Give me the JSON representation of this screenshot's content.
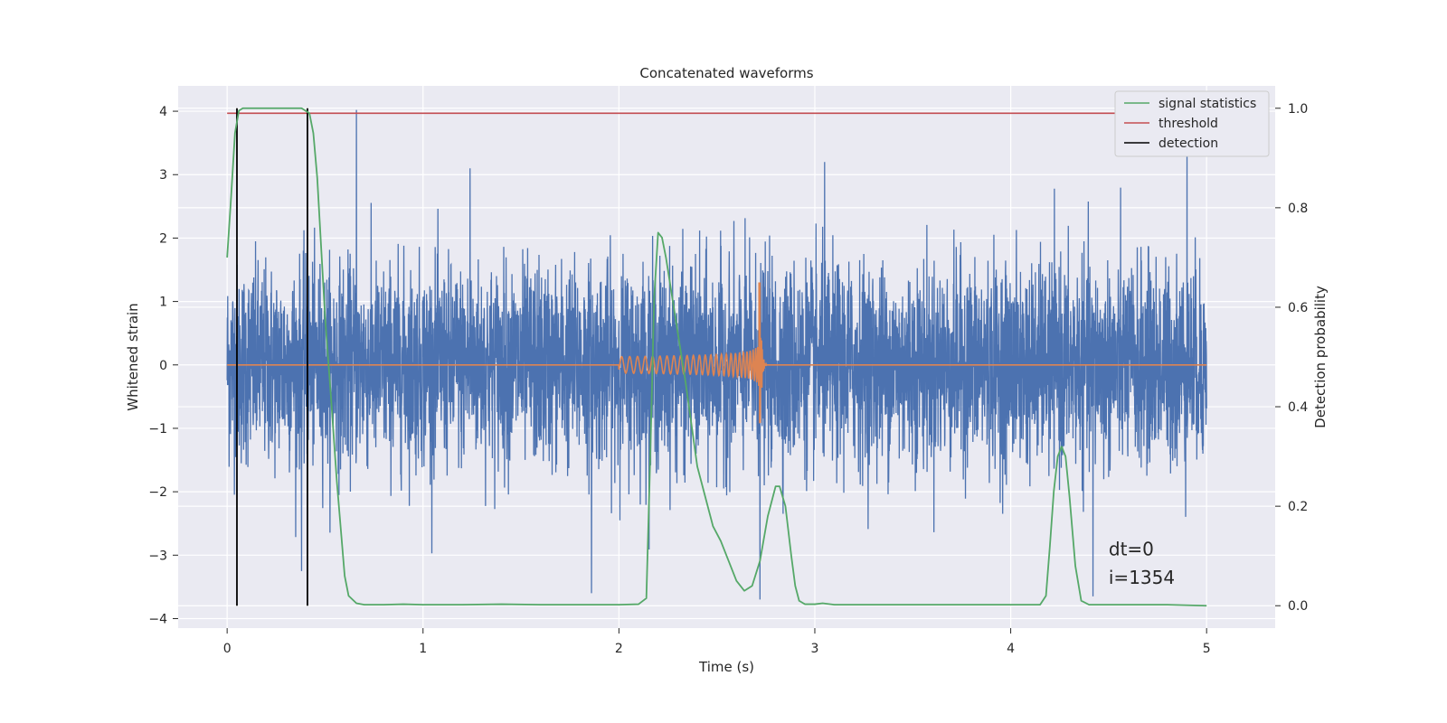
{
  "chart_data": {
    "type": "line",
    "title": "Concatenated waveforms",
    "xlabel": "Time (s)",
    "ylabel_left": "Whitened strain",
    "ylabel_right": "Detection probability",
    "xlim": [
      -0.25,
      5.35
    ],
    "ylim_left": [
      -4.15,
      4.4
    ],
    "ylim_right": [
      -0.045,
      1.045
    ],
    "x_ticks": [
      0,
      1,
      2,
      3,
      4,
      5
    ],
    "y_left_ticks": [
      -4,
      -3,
      -2,
      -1,
      0,
      1,
      2,
      3,
      4
    ],
    "y_right_ticks": [
      0.0,
      0.2,
      0.4,
      0.6,
      0.8,
      1.0
    ],
    "grid": true,
    "legend_position": "top-right",
    "series": [
      {
        "name": "",
        "axis": "left",
        "color": "#4c72b0",
        "description_kind": "whitened noise strain",
        "x_range": [
          0,
          5
        ],
        "typical_amplitude": 1.0,
        "peaks": [
          {
            "x": 0.66,
            "y": 4.02
          },
          {
            "x": 4.9,
            "y": 3.5
          },
          {
            "x": 2.72,
            "y": -3.7
          },
          {
            "x": 1.86,
            "y": -3.6
          },
          {
            "x": 4.42,
            "y": -3.65
          },
          {
            "x": 0.38,
            "y": -3.25
          },
          {
            "x": 3.05,
            "y": 3.2
          },
          {
            "x": 1.24,
            "y": 3.1
          }
        ]
      },
      {
        "name": "",
        "axis": "left",
        "color": "#dd8452",
        "description_kind": "injected chirp waveform",
        "x_range": [
          0,
          5
        ],
        "chirp_start": 2.0,
        "chirp_merger": 2.72,
        "max": 1.3,
        "min": -0.92
      },
      {
        "name": "signal statistics",
        "axis": "right",
        "color": "#55a868",
        "x": [
          0.0,
          0.02,
          0.04,
          0.06,
          0.08,
          0.1,
          0.15,
          0.2,
          0.3,
          0.38,
          0.42,
          0.44,
          0.46,
          0.48,
          0.5,
          0.53,
          0.56,
          0.6,
          0.62,
          0.66,
          0.7,
          0.8,
          0.9,
          1.0,
          1.2,
          1.4,
          1.6,
          1.8,
          2.0,
          2.1,
          2.14,
          2.16,
          2.18,
          2.2,
          2.22,
          2.24,
          2.28,
          2.34,
          2.4,
          2.44,
          2.48,
          2.52,
          2.56,
          2.6,
          2.64,
          2.68,
          2.72,
          2.76,
          2.8,
          2.82,
          2.85,
          2.88,
          2.9,
          2.92,
          2.95,
          3.0,
          3.04,
          3.1,
          3.5,
          4.0,
          4.15,
          4.18,
          4.2,
          4.22,
          4.24,
          4.26,
          4.28,
          4.3,
          4.33,
          4.36,
          4.4,
          4.6,
          4.8,
          5.0
        ],
        "y": [
          0.7,
          0.82,
          0.95,
          0.995,
          1.0,
          1.0,
          1.0,
          1.0,
          1.0,
          1.0,
          0.99,
          0.95,
          0.86,
          0.72,
          0.58,
          0.42,
          0.25,
          0.06,
          0.02,
          0.005,
          0.002,
          0.002,
          0.003,
          0.002,
          0.002,
          0.003,
          0.002,
          0.002,
          0.002,
          0.003,
          0.015,
          0.3,
          0.62,
          0.75,
          0.74,
          0.7,
          0.6,
          0.45,
          0.28,
          0.22,
          0.16,
          0.13,
          0.09,
          0.05,
          0.03,
          0.04,
          0.09,
          0.18,
          0.24,
          0.24,
          0.2,
          0.1,
          0.04,
          0.01,
          0.003,
          0.003,
          0.005,
          0.002,
          0.002,
          0.002,
          0.002,
          0.02,
          0.12,
          0.23,
          0.3,
          0.32,
          0.3,
          0.22,
          0.08,
          0.01,
          0.002,
          0.002,
          0.002,
          0.0
        ]
      },
      {
        "name": "threshold",
        "axis": "right",
        "color": "#c44e52",
        "x": [
          0,
          5
        ],
        "y": [
          0.99,
          0.99
        ]
      },
      {
        "name": "detection",
        "axis": "right",
        "color": "#000000",
        "vertical_lines": [
          0.05,
          0.41
        ],
        "y_range": [
          0.0,
          1.0
        ]
      }
    ],
    "annotations": [
      {
        "text": "dt=0",
        "x": 4.5,
        "y": -3.0
      },
      {
        "text": "i=1354",
        "x": 4.5,
        "y": -3.45
      }
    ]
  }
}
